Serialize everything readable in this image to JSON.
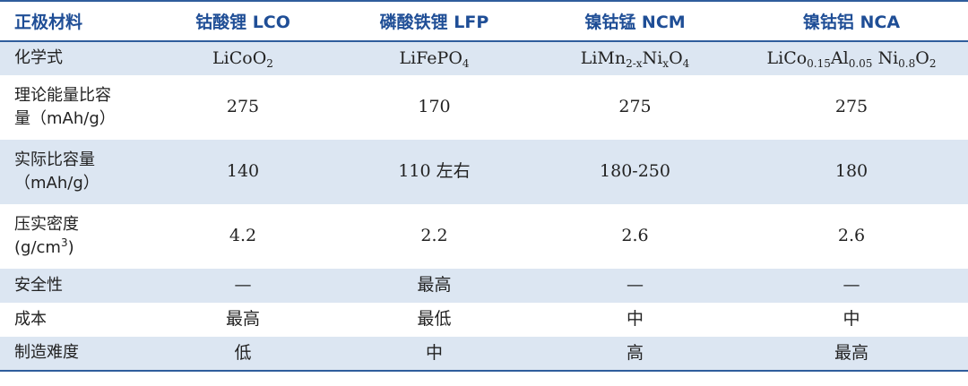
{
  "header": {
    "col0": "正极材料",
    "col1": "钴酸锂 LCO",
    "col2": "磷酸铁锂 LFP",
    "col3": "镍钴锰 NCM",
    "col4": "镍钴铝 NCA"
  },
  "formula": {
    "label": "化学式",
    "lco": {
      "a": "LiCoO",
      "sub1": "2"
    },
    "lfp": {
      "a": "LiFePO",
      "sub1": "4"
    },
    "ncm": {
      "a": "LiMn",
      "sub1": "2-x",
      "b": "Ni",
      "sub2": "x",
      "c": "O",
      "sub3": "4"
    },
    "nca": {
      "a": "LiCo",
      "sub1": "0.15",
      "b": "Al",
      "sub2": "0.05",
      "c": " Ni",
      "sub3": "0.8",
      "d": "O",
      "sub4": "2"
    }
  },
  "theory": {
    "label_line1": "理论能量比容",
    "label_line2": "量（mAh/g）",
    "values": [
      "275",
      "170",
      "275",
      "275"
    ]
  },
  "actual": {
    "label_line1": "实际比容量",
    "label_line2": "（mAh/g）",
    "values": [
      "140",
      "110 左右",
      "180-250",
      "180"
    ]
  },
  "density": {
    "label_line1": "压实密度",
    "label_line2_a": "(g/cm",
    "label_line2_sup": "3",
    "label_line2_b": ")",
    "values": [
      "4.2",
      "2.2",
      "2.6",
      "2.6"
    ]
  },
  "safety": {
    "label": "安全性",
    "values": [
      "—",
      "最高",
      "—",
      "—"
    ]
  },
  "cost": {
    "label": "成本",
    "values": [
      "最高",
      "最低",
      "中",
      "中"
    ]
  },
  "difficulty": {
    "label": "制造难度",
    "values": [
      "低",
      "中",
      "高",
      "最高"
    ]
  }
}
